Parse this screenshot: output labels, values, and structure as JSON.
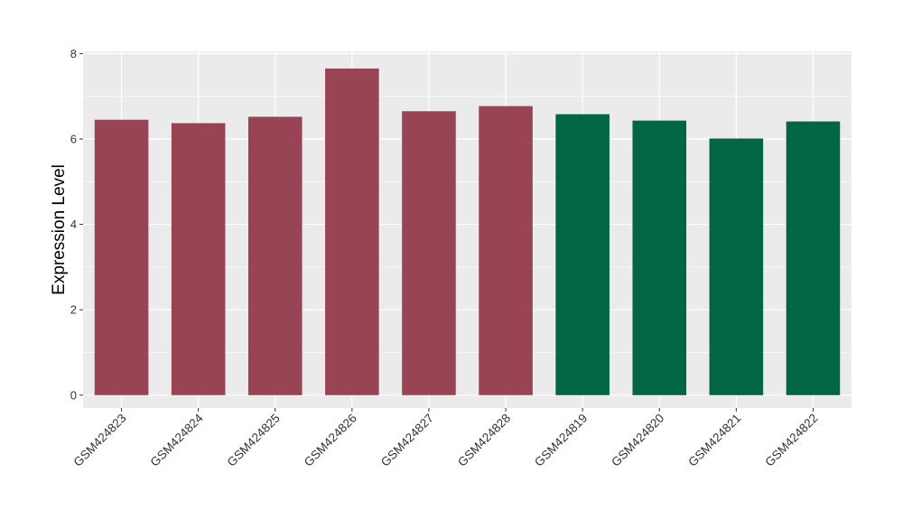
{
  "chart_data": {
    "type": "bar",
    "title": "",
    "xlabel": "",
    "ylabel": "Expression Level",
    "ylim": [
      -0.3,
      8.05
    ],
    "yticks": [
      0,
      2,
      4,
      6,
      8
    ],
    "grid": true,
    "legend": "none",
    "categories": [
      "GSM424823",
      "GSM424824",
      "GSM424825",
      "GSM424826",
      "GSM424827",
      "GSM424828",
      "GSM424819",
      "GSM424820",
      "GSM424821",
      "GSM424822"
    ],
    "values": [
      6.45,
      6.37,
      6.52,
      7.65,
      6.65,
      6.77,
      6.58,
      6.43,
      6.01,
      6.41
    ],
    "bar_colors": [
      "#994455",
      "#994455",
      "#994455",
      "#994455",
      "#994455",
      "#994455",
      "#006644",
      "#006644",
      "#006644",
      "#006644"
    ],
    "panel_background": "#ebebeb",
    "grid_color": "#ffffff"
  }
}
